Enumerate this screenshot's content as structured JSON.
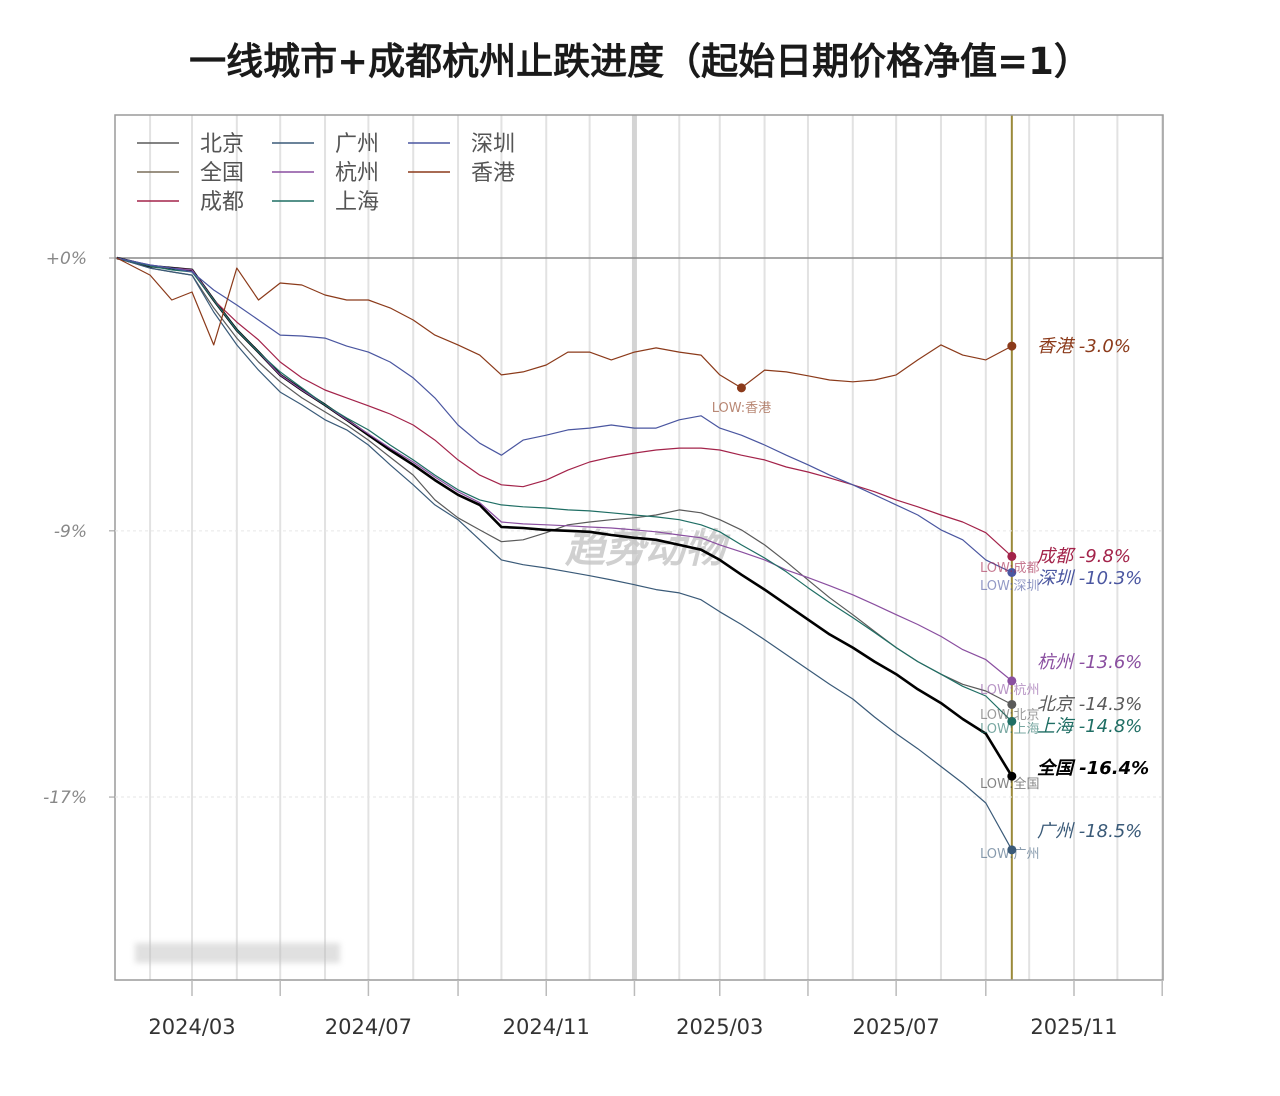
{
  "chart_data": {
    "type": "line",
    "title": "一线城市+成都杭州止跌进度（起始日期价格净值=1）",
    "xlabel": "",
    "ylabel": "",
    "y_scale": "log",
    "ylim": [
      5.1,
      -22.1
    ],
    "xlim": [
      "2024-01-07",
      "2026-01-01"
    ],
    "y_ticks": [
      {
        "value": 0,
        "label": "+0%"
      },
      {
        "value": -9,
        "label": "-9%"
      },
      {
        "value": -17,
        "label": "-17%"
      }
    ],
    "x_ticks": [
      {
        "value": "2024-03-01",
        "label": "2024/03"
      },
      {
        "value": "2024-07-01",
        "label": "2024/07"
      },
      {
        "value": "2024-11-01",
        "label": "2024/11"
      },
      {
        "value": "2025-03-01",
        "label": "2025/03"
      },
      {
        "value": "2025-07-01",
        "label": "2025/07"
      },
      {
        "value": "2025-11-01",
        "label": "2025/11"
      }
    ],
    "grid": true,
    "legend_position": "top-left",
    "highlight_date": "2025-01-01",
    "current_date": "2025-09-19",
    "current_line_color": "#9a8a3a",
    "watermark": "趋势动物",
    "x": [
      "2024-01-09",
      "2024-02-01",
      "2024-02-16",
      "2024-03-01",
      "2024-03-16",
      "2024-04-01",
      "2024-04-16",
      "2024-05-01",
      "2024-05-16",
      "2024-06-01",
      "2024-06-16",
      "2024-07-01",
      "2024-07-16",
      "2024-08-01",
      "2024-08-16",
      "2024-09-01",
      "2024-09-16",
      "2024-10-01",
      "2024-10-16",
      "2024-11-01",
      "2024-11-16",
      "2024-12-01",
      "2024-12-16",
      "2025-01-01",
      "2025-01-16",
      "2025-02-01",
      "2025-02-16",
      "2025-03-01",
      "2025-03-16",
      "2025-04-01",
      "2025-04-16",
      "2025-05-01",
      "2025-05-16",
      "2025-06-01",
      "2025-06-16",
      "2025-07-01",
      "2025-07-16",
      "2025-08-01",
      "2025-08-16",
      "2025-09-01",
      "2025-09-19"
    ],
    "series": [
      {
        "name": "北京",
        "color": "#5a5a5a",
        "end_label": "北京 -14.3%",
        "low_label": "LOW:北京",
        "values": [
          0,
          -0.35,
          -0.48,
          -0.59,
          -1.71,
          -2.73,
          -3.53,
          -4.19,
          -4.72,
          -5.18,
          -5.61,
          -6.1,
          -6.65,
          -7.23,
          -8.02,
          -8.59,
          -8.97,
          -9.34,
          -9.28,
          -9.06,
          -8.81,
          -8.72,
          -8.65,
          -8.59,
          -8.5,
          -8.34,
          -8.43,
          -8.65,
          -8.97,
          -9.44,
          -9.97,
          -10.53,
          -11.08,
          -11.6,
          -12.11,
          -12.6,
          -13.02,
          -13.4,
          -13.7,
          -13.9,
          -14.3
        ]
      },
      {
        "name": "全国",
        "color": "#000000",
        "legend_color": "#7a6e5a",
        "end_label": "全国 -16.4%",
        "low_label": "LOW:全国",
        "values": [
          0,
          -0.28,
          -0.35,
          -0.41,
          -1.44,
          -2.46,
          -3.2,
          -3.96,
          -4.46,
          -4.95,
          -5.44,
          -5.93,
          -6.42,
          -6.9,
          -7.39,
          -7.86,
          -8.18,
          -8.88,
          -8.91,
          -8.97,
          -9.0,
          -9.03,
          -9.13,
          -9.22,
          -9.28,
          -9.44,
          -9.59,
          -9.91,
          -10.37,
          -10.83,
          -11.29,
          -11.75,
          -12.2,
          -12.6,
          -13.02,
          -13.4,
          -13.85,
          -14.26,
          -14.73,
          -15.16,
          -16.4
        ]
      },
      {
        "name": "成都",
        "color": "#a3234a",
        "end_label": "成都 -9.8%",
        "low_label": "LOW:成都",
        "values": [
          0,
          -0.28,
          -0.35,
          -0.41,
          -1.44,
          -2.19,
          -2.79,
          -3.53,
          -4.06,
          -4.46,
          -4.72,
          -4.98,
          -5.25,
          -5.61,
          -6.1,
          -6.74,
          -7.23,
          -7.54,
          -7.6,
          -7.39,
          -7.07,
          -6.81,
          -6.65,
          -6.52,
          -6.42,
          -6.36,
          -6.36,
          -6.42,
          -6.59,
          -6.74,
          -6.97,
          -7.13,
          -7.32,
          -7.54,
          -7.76,
          -8.02,
          -8.24,
          -8.5,
          -8.72,
          -9.06,
          -9.8
        ]
      },
      {
        "name": "广州",
        "color": "#3a5a78",
        "end_label": "广州 -18.5%",
        "low_label": "LOW:广州",
        "values": [
          0,
          -0.35,
          -0.48,
          -0.59,
          -1.85,
          -2.96,
          -3.8,
          -4.53,
          -4.95,
          -5.44,
          -5.77,
          -6.26,
          -6.9,
          -7.54,
          -8.18,
          -8.65,
          -9.28,
          -9.91,
          -10.06,
          -10.16,
          -10.28,
          -10.4,
          -10.53,
          -10.68,
          -10.83,
          -10.93,
          -11.14,
          -11.51,
          -11.9,
          -12.36,
          -12.81,
          -13.26,
          -13.7,
          -14.14,
          -14.67,
          -15.16,
          -15.6,
          -16.12,
          -16.6,
          -17.17,
          -18.5
        ]
      },
      {
        "name": "杭州",
        "color": "#8a4fa0",
        "end_label": "杭州 -13.6%",
        "low_label": "LOW:杭州",
        "values": [
          0,
          -0.24,
          -0.35,
          -0.41,
          -1.44,
          -2.46,
          -3.2,
          -3.96,
          -4.46,
          -4.95,
          -5.44,
          -5.9,
          -6.36,
          -6.81,
          -7.29,
          -7.76,
          -8.11,
          -8.72,
          -8.78,
          -8.81,
          -8.84,
          -8.88,
          -8.91,
          -8.97,
          -9.03,
          -9.13,
          -9.22,
          -9.44,
          -9.66,
          -9.91,
          -10.22,
          -10.46,
          -10.71,
          -10.99,
          -11.29,
          -11.6,
          -11.9,
          -12.26,
          -12.66,
          -12.96,
          -13.6
        ]
      },
      {
        "name": "上海",
        "color": "#1f6e64",
        "end_label": "上海 -14.8%",
        "low_label": "LOW:上海",
        "values": [
          0,
          -0.28,
          -0.41,
          -0.48,
          -1.44,
          -2.46,
          -3.2,
          -3.86,
          -4.39,
          -4.95,
          -5.38,
          -5.77,
          -6.26,
          -6.74,
          -7.23,
          -7.7,
          -8.02,
          -8.18,
          -8.24,
          -8.28,
          -8.34,
          -8.37,
          -8.43,
          -8.5,
          -8.56,
          -8.65,
          -8.81,
          -9.03,
          -9.44,
          -9.85,
          -10.28,
          -10.77,
          -11.23,
          -11.69,
          -12.14,
          -12.6,
          -13.02,
          -13.4,
          -13.76,
          -14.05,
          -14.8
        ]
      },
      {
        "name": "深圳",
        "color": "#4a56a0",
        "end_label": "深圳 -10.3%",
        "low_label": "LOW:深圳",
        "values": [
          0,
          -0.24,
          -0.35,
          -0.48,
          -1.1,
          -1.61,
          -2.12,
          -2.63,
          -2.66,
          -2.73,
          -3.0,
          -3.2,
          -3.53,
          -4.06,
          -4.72,
          -5.61,
          -6.2,
          -6.59,
          -6.1,
          -5.94,
          -5.77,
          -5.71,
          -5.61,
          -5.71,
          -5.71,
          -5.44,
          -5.31,
          -5.71,
          -5.94,
          -6.26,
          -6.59,
          -6.9,
          -7.23,
          -7.54,
          -7.86,
          -8.18,
          -8.5,
          -8.97,
          -9.28,
          -9.91,
          -10.3
        ]
      },
      {
        "name": "香港",
        "color": "#8b3a1a",
        "end_label": "香港 -3.0%",
        "low_label": "LOW:香港",
        "values": [
          0,
          -0.59,
          -1.44,
          -1.17,
          -2.96,
          -0.35,
          -1.44,
          -0.86,
          -0.93,
          -1.27,
          -1.44,
          -1.44,
          -1.71,
          -2.12,
          -2.63,
          -2.96,
          -3.3,
          -3.96,
          -3.86,
          -3.63,
          -3.2,
          -3.2,
          -3.46,
          -3.2,
          -3.06,
          -3.2,
          -3.3,
          -3.96,
          -4.39,
          -3.8,
          -3.86,
          -3.99,
          -4.13,
          -4.19,
          -4.13,
          -3.96,
          -3.46,
          -2.96,
          -3.3,
          -3.46,
          -3.0
        ]
      }
    ]
  }
}
